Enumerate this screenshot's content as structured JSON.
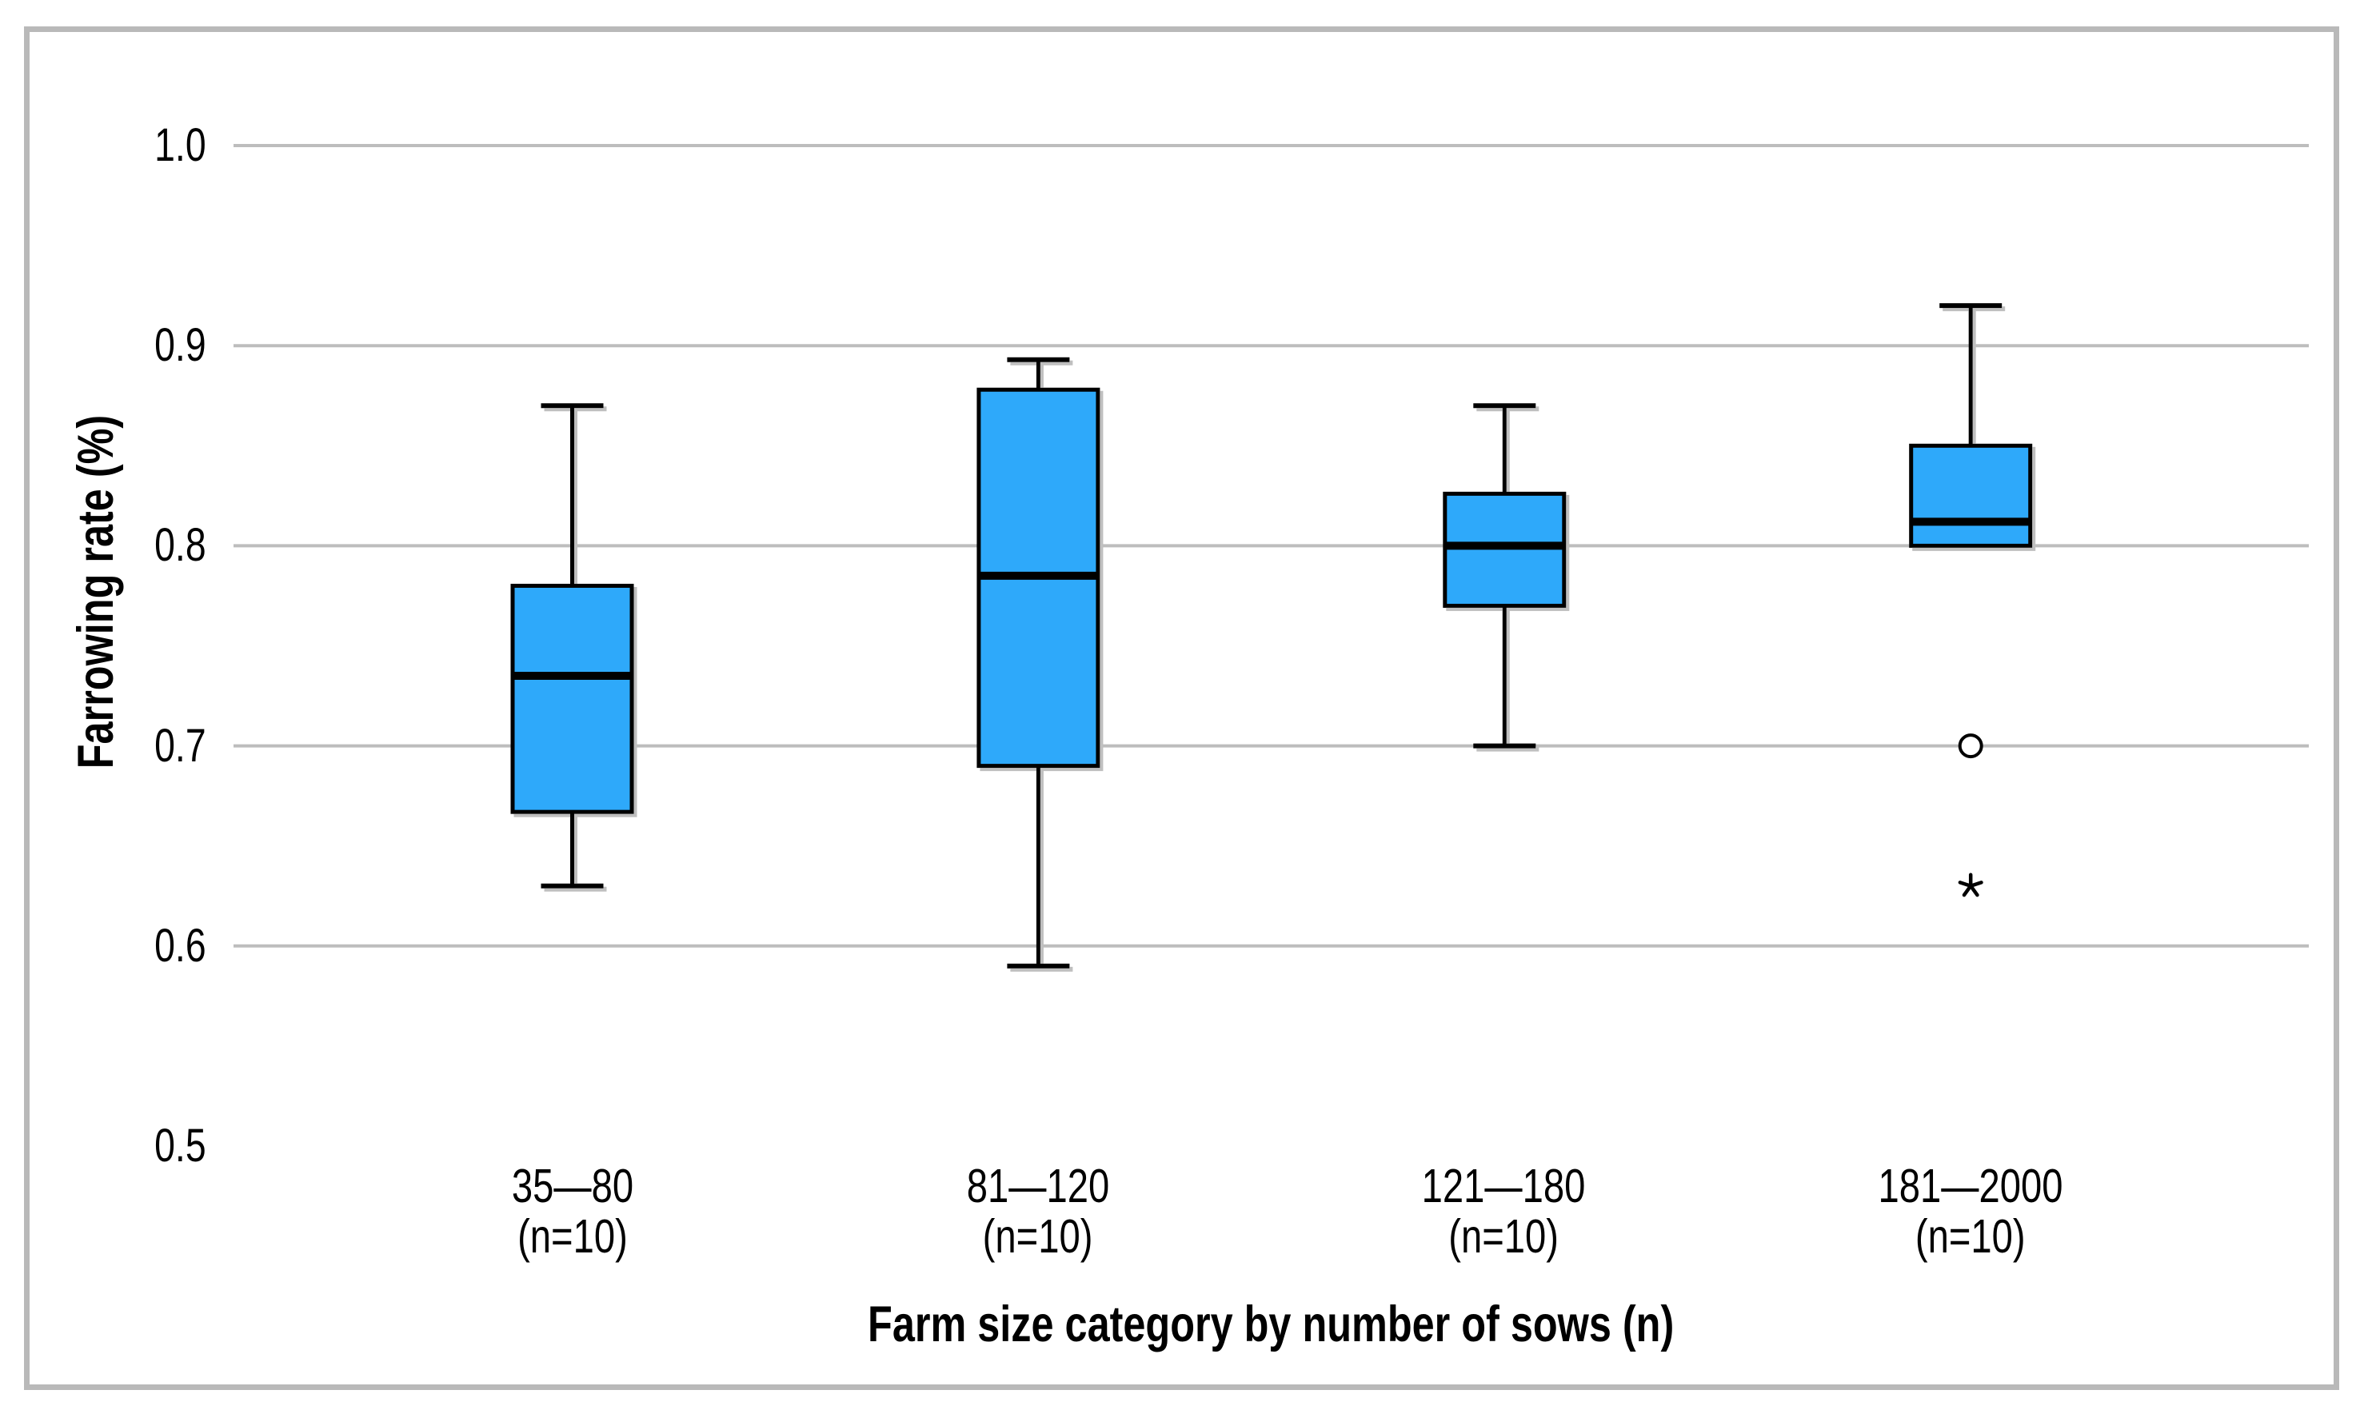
{
  "chart_data": {
    "type": "boxplot",
    "title": "",
    "ylabel": "Farrowing rate (%)",
    "xlabel": "Farm size category by number of sows (n)",
    "ylim": [
      0.5,
      1.055
    ],
    "yticks": [
      1.0,
      0.9,
      0.8,
      0.7,
      0.6,
      0.5
    ],
    "ytick_labels": [
      "1.0",
      "0.9",
      "0.8",
      "0.7",
      "0.6",
      "0.5"
    ],
    "grid": "horizontal gray gridlines at each y tick above 0.5",
    "legend": "none",
    "colors": {
      "box_fill": "#2FA9FA",
      "box_stroke": "#000000",
      "median": "#000000",
      "grid": "#BDBDBD",
      "axis": "#000000",
      "frame": "#B9B9B9",
      "background": "#FFFFFF",
      "shadow": "#BFBFBF"
    },
    "categories": [
      {
        "label": "35—80",
        "n_label": "(n=10)",
        "whisker_low": 0.63,
        "q1": 0.667,
        "median": 0.735,
        "q3": 0.78,
        "whisker_high": 0.87,
        "outliers": [],
        "extremes": []
      },
      {
        "label": "81—120",
        "n_label": "(n=10)",
        "whisker_low": 0.59,
        "q1": 0.69,
        "median": 0.785,
        "q3": 0.878,
        "whisker_high": 0.893,
        "outliers": [],
        "extremes": []
      },
      {
        "label": "121—180",
        "n_label": "(n=10)",
        "whisker_low": 0.7,
        "q1": 0.77,
        "median": 0.8,
        "q3": 0.826,
        "whisker_high": 0.87,
        "outliers": [],
        "extremes": []
      },
      {
        "label": "181—2000",
        "n_label": "(n=10)",
        "whisker_low": null,
        "q1": 0.8,
        "median": 0.812,
        "q3": 0.85,
        "whisker_high": 0.92,
        "outliers": [
          0.7
        ],
        "extremes": [
          0.63
        ]
      }
    ]
  }
}
